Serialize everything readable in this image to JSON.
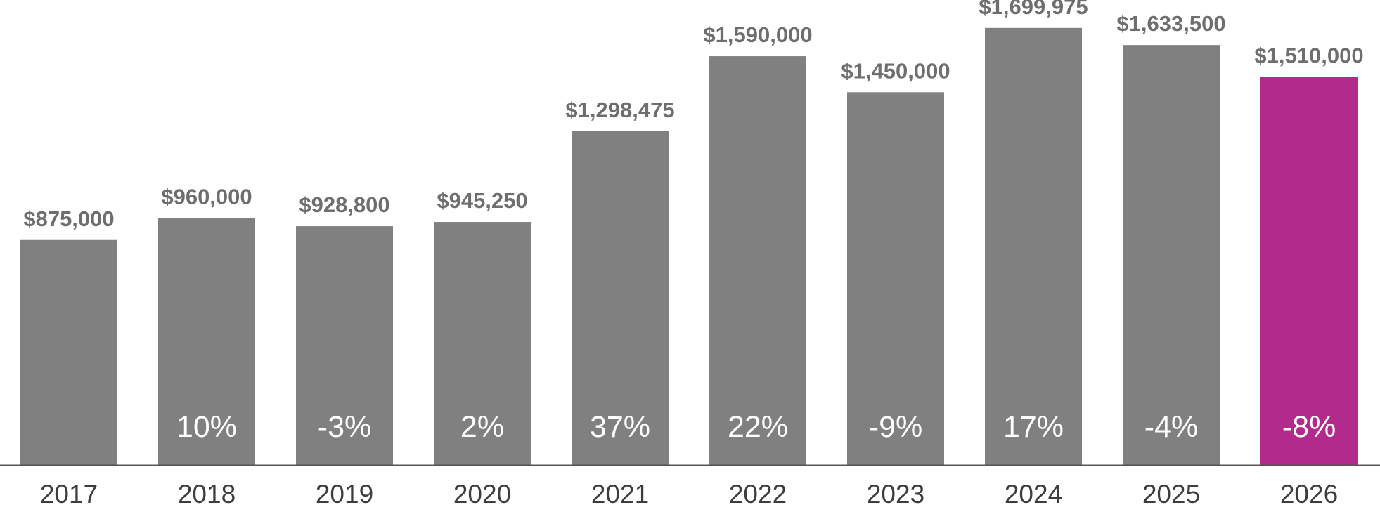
{
  "chart_data": {
    "type": "bar",
    "title": "",
    "xlabel": "",
    "ylabel": "",
    "ylim": [
      0,
      1750000
    ],
    "grid": false,
    "categories": [
      "2017",
      "2018",
      "2019",
      "2020",
      "2021",
      "2022",
      "2023",
      "2024",
      "2025",
      "2026"
    ],
    "values": [
      875000,
      960000,
      928800,
      945250,
      1298475,
      1590000,
      1450000,
      1699975,
      1633500,
      1510000
    ],
    "value_labels": [
      "$875,000",
      "$960,000",
      "$928,800",
      "$945,250",
      "$1,298,475",
      "$1,590,000",
      "$1,450,000",
      "$1,699,975",
      "$1,633,500",
      "$1,510,000"
    ],
    "change_labels": [
      "",
      "10%",
      "-3%",
      "2%",
      "37%",
      "22%",
      "-9%",
      "17%",
      "-4%",
      "-8%"
    ],
    "colors": {
      "bar": "#808080",
      "highlight_bar": "#b12a8c",
      "value_text": "#6e6e6e",
      "change_text": "#ffffff",
      "axis_text": "#3d3d3d",
      "axis_line": "#555555"
    },
    "highlight_category": "2026"
  }
}
